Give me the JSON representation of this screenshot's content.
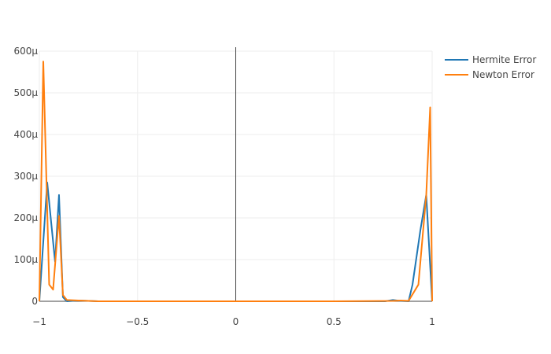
{
  "chart_data": {
    "type": "line",
    "title": "",
    "xlabel": "",
    "ylabel": "",
    "xlim": [
      -1,
      1
    ],
    "ylim": [
      0,
      600
    ],
    "grid": true,
    "legend_position": "top-right",
    "x_ticks": [
      {
        "value": -1,
        "label": "−1"
      },
      {
        "value": -0.5,
        "label": "−0.5"
      },
      {
        "value": 0,
        "label": "0"
      },
      {
        "value": 0.5,
        "label": "0.5"
      },
      {
        "value": 1,
        "label": "1"
      }
    ],
    "y_ticks": [
      {
        "value": 0,
        "label": "0"
      },
      {
        "value": 100,
        "label": "100μ"
      },
      {
        "value": 200,
        "label": "200μ"
      },
      {
        "value": 300,
        "label": "300μ"
      },
      {
        "value": 400,
        "label": "400μ"
      },
      {
        "value": 500,
        "label": "500μ"
      },
      {
        "value": 600,
        "label": "600μ"
      }
    ],
    "series": [
      {
        "name": "Hermite Error",
        "color": "#1f77b4",
        "x": [
          -1.0,
          -0.96,
          -0.92,
          -0.9,
          -0.88,
          -0.86,
          -0.8,
          -0.7,
          -0.5,
          0.0,
          0.5,
          0.76,
          0.8,
          0.84,
          0.88,
          0.9,
          0.94,
          0.97,
          1.0
        ],
        "y": [
          0,
          285,
          95,
          255,
          10,
          0,
          2,
          0,
          0,
          0,
          0,
          0,
          3,
          1,
          0,
          40,
          170,
          255,
          0
        ]
      },
      {
        "name": "Newton Error",
        "color": "#ff7f0e",
        "x": [
          -1.0,
          -0.98,
          -0.95,
          -0.93,
          -0.9,
          -0.88,
          -0.86,
          -0.8,
          -0.7,
          -0.5,
          0.0,
          0.5,
          0.8,
          0.84,
          0.88,
          0.93,
          0.97,
          0.99,
          1.0
        ],
        "y": [
          0,
          575,
          40,
          28,
          205,
          15,
          3,
          2,
          0,
          0,
          0,
          0,
          1,
          2,
          1,
          40,
          255,
          465,
          0
        ]
      }
    ]
  }
}
